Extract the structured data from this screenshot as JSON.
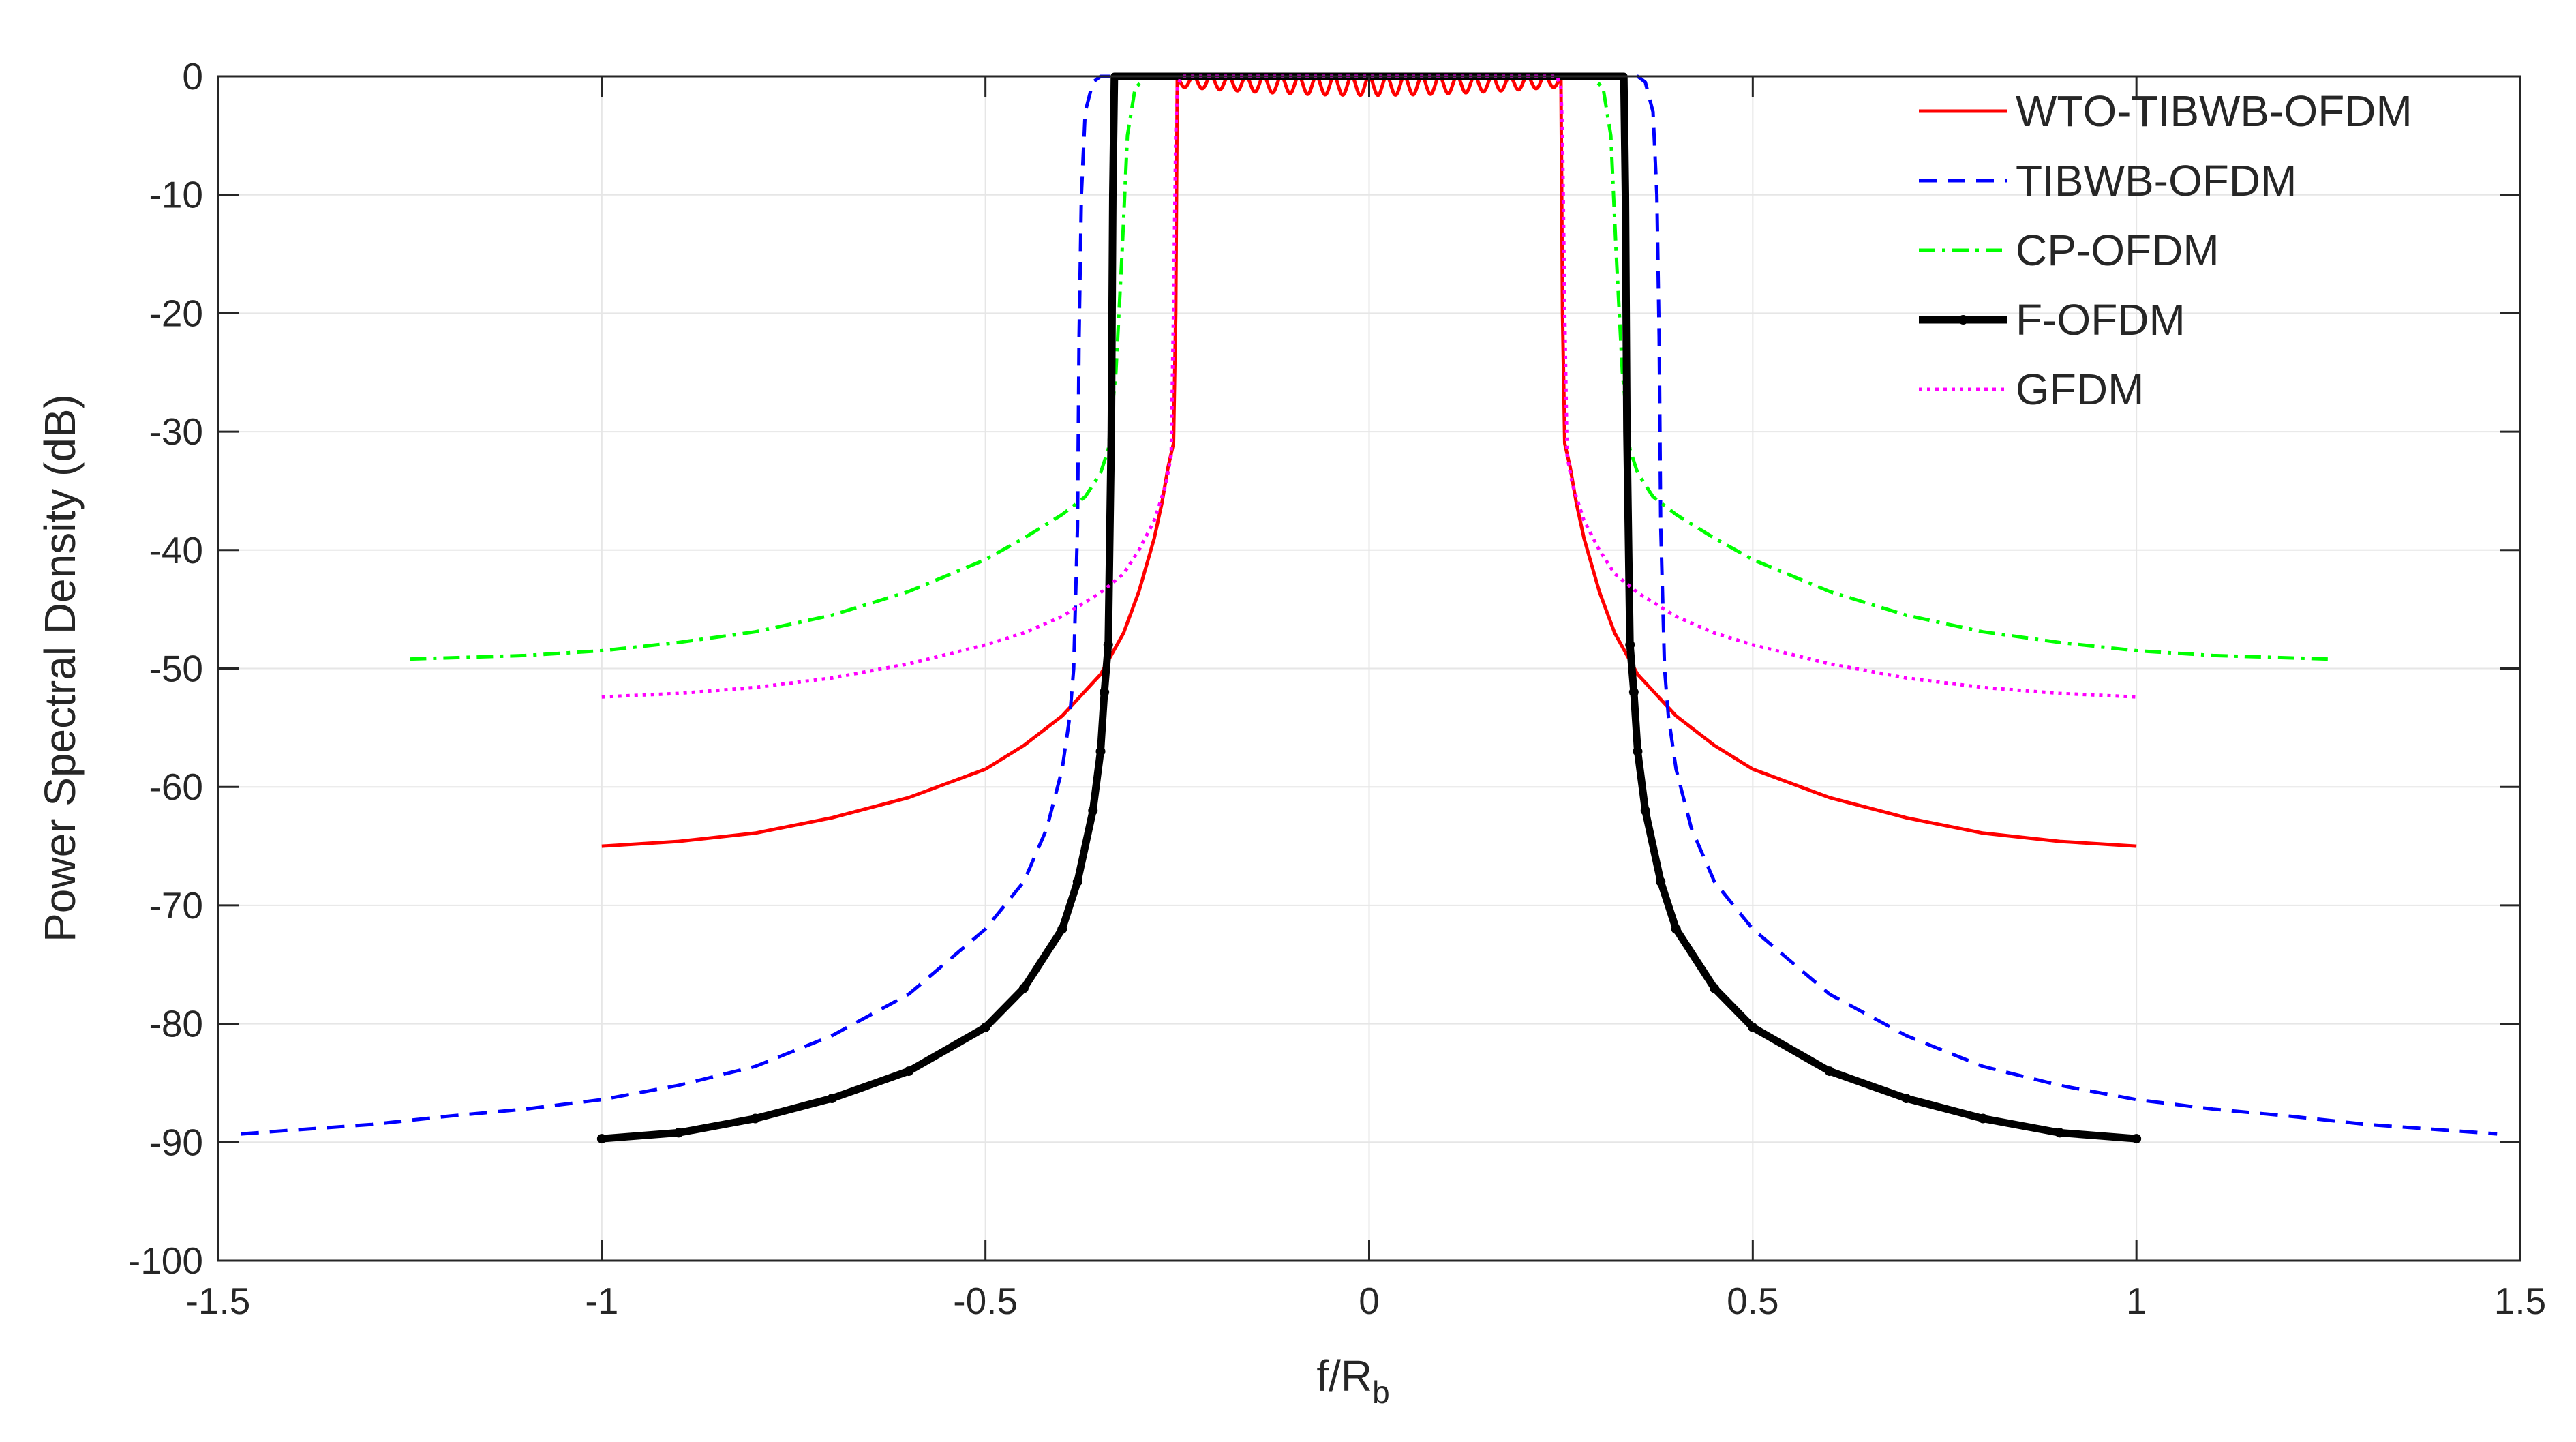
{
  "chart_data": {
    "type": "line",
    "title": "",
    "xlabel": "f/R",
    "xlabel_subscript": "b",
    "ylabel": "Power Spectral Density (dB)",
    "xlim": [
      -1.5,
      1.5
    ],
    "ylim": [
      -100,
      0
    ],
    "grid": true,
    "legend_position": "top-right",
    "xticks": [
      -1.5,
      -1,
      -0.5,
      0,
      0.5,
      1,
      1.5
    ],
    "xtick_labels": [
      "-1.5",
      "-1",
      "-0.5",
      "0",
      "0.5",
      "1",
      "1.5"
    ],
    "yticks": [
      0,
      -10,
      -20,
      -30,
      -40,
      -50,
      -60,
      -70,
      -80,
      -90,
      -100
    ],
    "ytick_labels": [
      "0",
      "-10",
      "-20",
      "-30",
      "-40",
      "-50",
      "-60",
      "-70",
      "-80",
      "-90",
      "-100"
    ],
    "series": [
      {
        "name": "WTO-TIBWB-OFDM",
        "color": "#ff0000",
        "style": "solid",
        "band_edge": 0.252,
        "in_band_ripple_db": 1.6,
        "ripple_cycles": 22,
        "points": [
          [
            -1.0,
            -65.0
          ],
          [
            -0.9,
            -64.6
          ],
          [
            -0.8,
            -63.9
          ],
          [
            -0.7,
            -62.6
          ],
          [
            -0.6,
            -60.9
          ],
          [
            -0.5,
            -58.5
          ],
          [
            -0.45,
            -56.5
          ],
          [
            -0.4,
            -54.0
          ],
          [
            -0.35,
            -50.5
          ],
          [
            -0.32,
            -47.0
          ],
          [
            -0.3,
            -43.5
          ],
          [
            -0.28,
            -39.0
          ],
          [
            -0.27,
            -36.0
          ],
          [
            -0.262,
            -33.0
          ],
          [
            -0.255,
            -31.0
          ],
          [
            0.255,
            -31.0
          ],
          [
            0.262,
            -33.0
          ],
          [
            0.27,
            -36.0
          ],
          [
            0.28,
            -39.0
          ],
          [
            0.3,
            -43.5
          ],
          [
            0.32,
            -47.0
          ],
          [
            0.35,
            -50.5
          ],
          [
            0.4,
            -54.0
          ],
          [
            0.45,
            -56.5
          ],
          [
            0.5,
            -58.5
          ],
          [
            0.6,
            -60.9
          ],
          [
            0.7,
            -62.6
          ],
          [
            0.8,
            -63.9
          ],
          [
            0.9,
            -64.6
          ],
          [
            1.0,
            -65.0
          ]
        ]
      },
      {
        "name": "TIBWB-OFDM",
        "color": "#0000ff",
        "style": "dashed",
        "points": [
          [
            -1.47,
            -89.3
          ],
          [
            -1.3,
            -88.5
          ],
          [
            -1.2,
            -87.8
          ],
          [
            -1.1,
            -87.2
          ],
          [
            -1.0,
            -86.4
          ],
          [
            -0.9,
            -85.2
          ],
          [
            -0.8,
            -83.6
          ],
          [
            -0.7,
            -81.0
          ],
          [
            -0.6,
            -77.5
          ],
          [
            -0.5,
            -72.0
          ],
          [
            -0.45,
            -68.0
          ],
          [
            -0.42,
            -63.5
          ],
          [
            -0.4,
            -58.5
          ],
          [
            -0.39,
            -54.0
          ],
          [
            -0.385,
            -50.0
          ],
          [
            -0.38,
            -38.0
          ],
          [
            -0.378,
            -22.0
          ],
          [
            -0.375,
            -10.0
          ],
          [
            -0.37,
            -3.0
          ],
          [
            -0.36,
            -0.5
          ],
          [
            -0.35,
            0.0
          ],
          [
            0.35,
            0.0
          ],
          [
            0.36,
            -0.5
          ],
          [
            0.37,
            -3.0
          ],
          [
            0.375,
            -10.0
          ],
          [
            0.378,
            -22.0
          ],
          [
            0.38,
            -38.0
          ],
          [
            0.385,
            -50.0
          ],
          [
            0.39,
            -54.0
          ],
          [
            0.4,
            -58.5
          ],
          [
            0.42,
            -63.5
          ],
          [
            0.45,
            -68.0
          ],
          [
            0.5,
            -72.0
          ],
          [
            0.6,
            -77.5
          ],
          [
            0.7,
            -81.0
          ],
          [
            0.8,
            -83.6
          ],
          [
            0.9,
            -85.2
          ],
          [
            1.0,
            -86.4
          ],
          [
            1.1,
            -87.2
          ],
          [
            1.2,
            -87.8
          ],
          [
            1.3,
            -88.5
          ],
          [
            1.47,
            -89.3
          ]
        ]
      },
      {
        "name": "CP-OFDM",
        "color": "#00ff00",
        "style": "dashdot",
        "points": [
          [
            -1.25,
            -49.2
          ],
          [
            -1.1,
            -48.9
          ],
          [
            -1.0,
            -48.5
          ],
          [
            -0.9,
            -47.8
          ],
          [
            -0.8,
            -46.9
          ],
          [
            -0.7,
            -45.5
          ],
          [
            -0.6,
            -43.5
          ],
          [
            -0.5,
            -40.8
          ],
          [
            -0.45,
            -39.0
          ],
          [
            -0.4,
            -37.0
          ],
          [
            -0.37,
            -35.5
          ],
          [
            -0.35,
            -33.5
          ],
          [
            -0.34,
            -31.5
          ],
          [
            -0.33,
            -25.0
          ],
          [
            -0.322,
            -15.0
          ],
          [
            -0.315,
            -5.0
          ],
          [
            -0.305,
            -1.0
          ],
          [
            -0.29,
            0.0
          ],
          [
            0.29,
            0.0
          ],
          [
            0.305,
            -1.0
          ],
          [
            0.315,
            -5.0
          ],
          [
            0.322,
            -15.0
          ],
          [
            0.33,
            -25.0
          ],
          [
            0.34,
            -31.5
          ],
          [
            0.35,
            -33.5
          ],
          [
            0.37,
            -35.5
          ],
          [
            0.4,
            -37.0
          ],
          [
            0.45,
            -39.0
          ],
          [
            0.5,
            -40.8
          ],
          [
            0.6,
            -43.5
          ],
          [
            0.7,
            -45.5
          ],
          [
            0.8,
            -46.9
          ],
          [
            0.9,
            -47.8
          ],
          [
            1.0,
            -48.5
          ],
          [
            1.1,
            -48.9
          ],
          [
            1.25,
            -49.2
          ]
        ]
      },
      {
        "name": "F-OFDM",
        "color": "#000000",
        "style": "solid-marker",
        "points": [
          [
            -1.0,
            -89.7
          ],
          [
            -0.9,
            -89.2
          ],
          [
            -0.8,
            -88.0
          ],
          [
            -0.7,
            -86.3
          ],
          [
            -0.6,
            -84.0
          ],
          [
            -0.5,
            -80.3
          ],
          [
            -0.45,
            -77.0
          ],
          [
            -0.4,
            -72.0
          ],
          [
            -0.38,
            -68.0
          ],
          [
            -0.36,
            -62.0
          ],
          [
            -0.35,
            -57.0
          ],
          [
            -0.345,
            -52.0
          ],
          [
            -0.34,
            -48.0
          ],
          [
            -0.336,
            -30.0
          ],
          [
            -0.334,
            -10.0
          ],
          [
            -0.332,
            0.0
          ],
          [
            0.332,
            0.0
          ],
          [
            0.334,
            -10.0
          ],
          [
            0.336,
            -30.0
          ],
          [
            0.34,
            -48.0
          ],
          [
            0.345,
            -52.0
          ],
          [
            0.35,
            -57.0
          ],
          [
            0.36,
            -62.0
          ],
          [
            0.38,
            -68.0
          ],
          [
            0.4,
            -72.0
          ],
          [
            0.45,
            -77.0
          ],
          [
            0.5,
            -80.3
          ],
          [
            0.6,
            -84.0
          ],
          [
            0.7,
            -86.3
          ],
          [
            0.8,
            -88.0
          ],
          [
            0.9,
            -89.2
          ],
          [
            1.0,
            -89.7
          ]
        ]
      },
      {
        "name": "GFDM",
        "color": "#ff00ff",
        "style": "dotted",
        "points": [
          [
            -1.0,
            -52.4
          ],
          [
            -0.9,
            -52.1
          ],
          [
            -0.8,
            -51.6
          ],
          [
            -0.7,
            -50.8
          ],
          [
            -0.6,
            -49.6
          ],
          [
            -0.5,
            -48.0
          ],
          [
            -0.45,
            -47.0
          ],
          [
            -0.4,
            -45.6
          ],
          [
            -0.35,
            -43.6
          ],
          [
            -0.32,
            -42.0
          ],
          [
            -0.3,
            -40.0
          ],
          [
            -0.28,
            -37.5
          ],
          [
            -0.265,
            -34.5
          ],
          [
            -0.258,
            -32.0
          ],
          [
            -0.255,
            -20.0
          ],
          [
            -0.252,
            -5.0
          ],
          [
            -0.25,
            -1.0
          ],
          [
            -0.245,
            0.0
          ],
          [
            0.245,
            0.0
          ],
          [
            0.25,
            -1.0
          ],
          [
            0.252,
            -5.0
          ],
          [
            0.255,
            -20.0
          ],
          [
            0.258,
            -32.0
          ],
          [
            0.265,
            -34.5
          ],
          [
            0.28,
            -37.5
          ],
          [
            0.3,
            -40.0
          ],
          [
            0.32,
            -42.0
          ],
          [
            0.35,
            -43.6
          ],
          [
            0.4,
            -45.6
          ],
          [
            0.45,
            -47.0
          ],
          [
            0.5,
            -48.0
          ],
          [
            0.6,
            -49.6
          ],
          [
            0.7,
            -50.8
          ],
          [
            0.8,
            -51.6
          ],
          [
            0.9,
            -52.1
          ],
          [
            1.0,
            -52.4
          ]
        ]
      }
    ]
  }
}
